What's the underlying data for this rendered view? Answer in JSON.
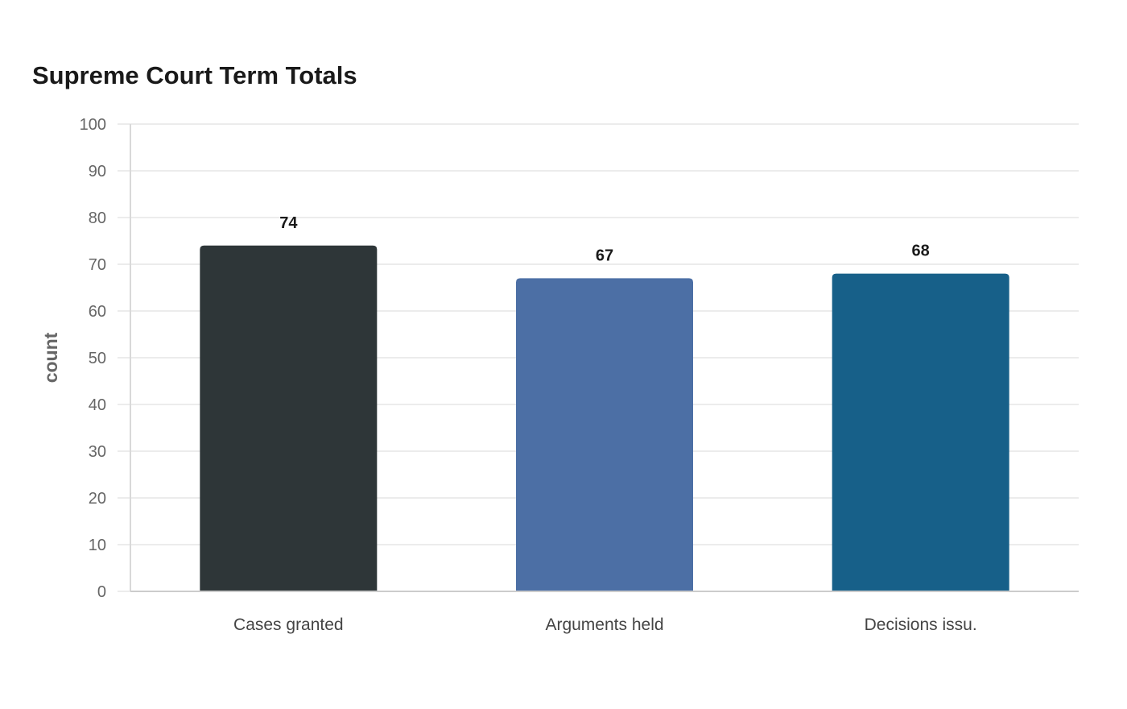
{
  "chart_data": {
    "type": "bar",
    "title": "Supreme Court Term Totals",
    "xlabel": "",
    "ylabel": "count",
    "ylim": [
      0,
      100
    ],
    "yticks": [
      0,
      10,
      20,
      30,
      40,
      50,
      60,
      70,
      80,
      90,
      100
    ],
    "categories": [
      "Cases granted",
      "Arguments held",
      "Decisions issu."
    ],
    "values": [
      74,
      67,
      68
    ],
    "colors": [
      "#2e3638",
      "#4c6fa5",
      "#176089"
    ],
    "grid": true,
    "legend": "none"
  }
}
